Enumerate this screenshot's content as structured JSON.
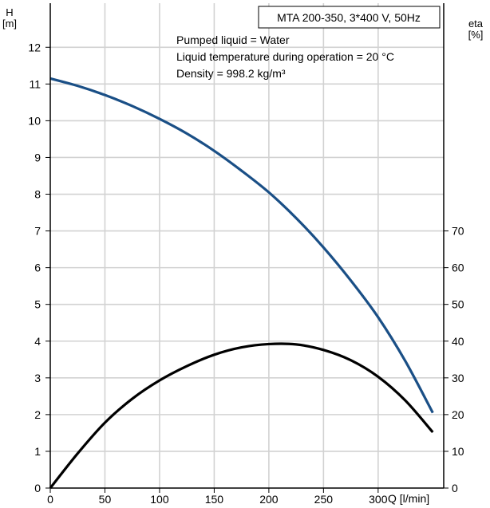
{
  "chart_data": {
    "type": "line",
    "title": "MTA 200-350, 3*400 V, 50Hz",
    "annotations": [
      "Pumped liquid = Water",
      "Liquid temperature during operation = 20 °C",
      "Density = 998.2 kg/m³"
    ],
    "x_axis": {
      "label": "Q [l/min]",
      "ticks": [
        "0",
        "50",
        "100",
        "150",
        "200",
        "250",
        "300"
      ],
      "range": [
        0,
        360
      ],
      "grid": true
    },
    "y_axis_left": {
      "label_line1": "H",
      "label_line2": "[m]",
      "ticks": [
        "0",
        "1",
        "2",
        "3",
        "4",
        "5",
        "6",
        "7",
        "8",
        "9",
        "10",
        "11",
        "12"
      ],
      "range": [
        0,
        13.2
      ],
      "grid": true
    },
    "y_axis_right": {
      "label_line1": "eta",
      "label_line2": "[%]",
      "ticks": [
        "0",
        "10",
        "20",
        "30",
        "40",
        "50",
        "60",
        "70"
      ],
      "range": [
        0,
        132
      ]
    },
    "series": [
      {
        "id": "head",
        "axis": "left",
        "color": "#1a4f86",
        "x": [
          0,
          25,
          50,
          75,
          100,
          125,
          150,
          175,
          200,
          225,
          250,
          275,
          300,
          325,
          350
        ],
        "y": [
          11.15,
          10.95,
          10.7,
          10.4,
          10.05,
          9.65,
          9.18,
          8.64,
          8.05,
          7.35,
          6.55,
          5.65,
          4.65,
          3.45,
          2.05
        ]
      },
      {
        "id": "efficiency",
        "axis": "right",
        "color": "#000000",
        "x": [
          0,
          25,
          50,
          75,
          100,
          125,
          150,
          175,
          200,
          225,
          250,
          275,
          300,
          325,
          350
        ],
        "y": [
          0,
          9.4,
          17.8,
          24.3,
          29.3,
          33.2,
          36.3,
          38.3,
          39.2,
          39.1,
          37.6,
          34.8,
          30.3,
          23.8,
          15.2
        ]
      }
    ]
  }
}
